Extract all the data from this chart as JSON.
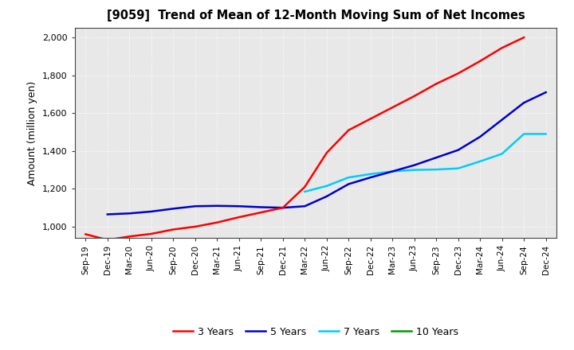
{
  "title": "[9059]  Trend of Mean of 12-Month Moving Sum of Net Incomes",
  "ylabel": "Amount (million yen)",
  "plot_bg_color": "#e8e8e8",
  "fig_bg_color": "#ffffff",
  "grid_color": "#ffffff",
  "ylim": [
    940,
    2050
  ],
  "yticks": [
    1000,
    1200,
    1400,
    1600,
    1800,
    2000
  ],
  "ytick_labels": [
    "1,000",
    "1,200",
    "1,400",
    "1,600",
    "1,800",
    "2,000"
  ],
  "x_labels": [
    "Sep-19",
    "Dec-19",
    "Mar-20",
    "Jun-20",
    "Sep-20",
    "Dec-20",
    "Mar-21",
    "Jun-21",
    "Sep-21",
    "Dec-21",
    "Mar-22",
    "Jun-22",
    "Sep-22",
    "Dec-22",
    "Mar-23",
    "Jun-23",
    "Sep-23",
    "Dec-23",
    "Mar-24",
    "Jun-24",
    "Sep-24",
    "Dec-24"
  ],
  "series_3yr": {
    "color": "#ff0000",
    "x_indices": [
      0,
      1,
      2,
      3,
      4,
      5,
      6,
      7,
      8,
      9,
      10,
      11,
      12,
      13,
      14,
      15,
      16,
      17,
      18,
      19,
      20
    ],
    "values": [
      960,
      930,
      948,
      962,
      985,
      1000,
      1022,
      1050,
      1075,
      1100,
      1210,
      1390,
      1510,
      1570,
      1630,
      1690,
      1755,
      1810,
      1875,
      1945,
      2000
    ]
  },
  "series_5yr": {
    "color": "#0000cc",
    "x_indices": [
      1,
      2,
      3,
      4,
      5,
      6,
      7,
      8,
      9,
      10,
      11,
      12,
      13,
      14,
      15,
      16,
      17,
      18,
      19,
      20,
      21
    ],
    "values": [
      1065,
      1070,
      1080,
      1095,
      1108,
      1110,
      1108,
      1103,
      1100,
      1108,
      1160,
      1225,
      1260,
      1292,
      1325,
      1365,
      1405,
      1475,
      1565,
      1655,
      1710
    ]
  },
  "series_7yr": {
    "color": "#00ccff",
    "x_indices": [
      10,
      11,
      12,
      13,
      14,
      15,
      16,
      17,
      18,
      19,
      20,
      21
    ],
    "values": [
      1185,
      1215,
      1260,
      1278,
      1292,
      1300,
      1302,
      1308,
      1345,
      1385,
      1490,
      1490
    ]
  },
  "series_10yr": {
    "color": "#009900",
    "x_indices": [],
    "values": []
  },
  "legend_labels": [
    "3 Years",
    "5 Years",
    "7 Years",
    "10 Years"
  ],
  "legend_colors": [
    "#ff0000",
    "#0000cc",
    "#00ccff",
    "#009900"
  ]
}
